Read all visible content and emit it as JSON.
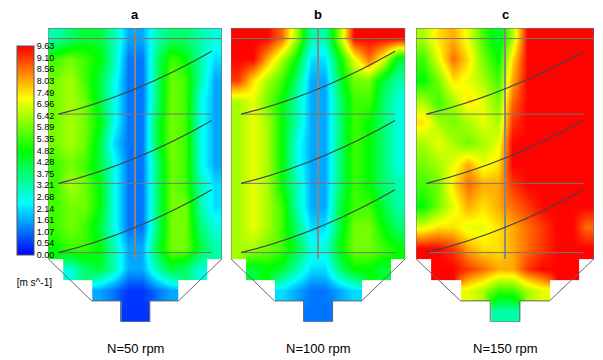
{
  "chart_data": [
    {
      "type": "heatmap",
      "title": "a",
      "x_label": "N=50 rpm",
      "tick_labels": false,
      "colorbar": {
        "title": "[m s^-1]",
        "range": [
          0,
          9.63
        ],
        "ticks": [
          {
            "value": 0,
            "label": "0.00"
          },
          0.54,
          1.07,
          1.61,
          2.14,
          2.68,
          3.21,
          3.75,
          4.28,
          4.82,
          5.35,
          5.89,
          6.42,
          6.96,
          7.49,
          8.03,
          8.56,
          {
            "value": 9.1,
            "label": "9.10"
          },
          9.63
        ]
      },
      "cells": [
        [
          3.2,
          3.8,
          4.3,
          4.3,
          3.2,
          1.6,
          1.6,
          3.2,
          3.8,
          3.8,
          3.2,
          2.7
        ],
        [
          5.4,
          5.9,
          5.4,
          4.8,
          3.2,
          1.1,
          1.1,
          3.8,
          5.4,
          4.8,
          3.2,
          2.1
        ],
        [
          5.9,
          6.4,
          5.4,
          4.3,
          2.7,
          1.1,
          1.1,
          3.8,
          5.9,
          5.4,
          3.2,
          1.6
        ],
        [
          5.9,
          6.4,
          5.9,
          4.3,
          2.7,
          1.1,
          1.1,
          3.8,
          5.9,
          5.4,
          2.7,
          1.6
        ],
        [
          5.9,
          6.4,
          5.9,
          4.8,
          2.7,
          1.1,
          1.1,
          4.3,
          5.9,
          5.4,
          2.7,
          1.6
        ],
        [
          5.9,
          6.4,
          5.9,
          4.3,
          2.1,
          1.1,
          1.1,
          4.3,
          5.9,
          5.4,
          2.7,
          1.6
        ],
        [
          5.4,
          5.9,
          5.4,
          4.3,
          2.7,
          1.1,
          1.1,
          3.8,
          5.9,
          5.4,
          2.7,
          1.6
        ],
        [
          5.4,
          6.4,
          5.9,
          4.8,
          2.7,
          1.1,
          1.1,
          3.8,
          5.9,
          5.4,
          3.2,
          2.1
        ],
        [
          5.4,
          5.9,
          5.9,
          4.8,
          2.7,
          1.1,
          1.1,
          3.8,
          5.9,
          5.9,
          3.2,
          2.1
        ],
        [
          5.4,
          5.9,
          5.4,
          4.3,
          2.7,
          1.1,
          1.1,
          3.8,
          5.9,
          5.9,
          3.8,
          2.7
        ],
        [
          4.8,
          5.4,
          5.4,
          4.8,
          3.2,
          1.6,
          1.6,
          4.3,
          5.9,
          5.9,
          4.3,
          3.2
        ],
        [
          null,
          2.7,
          3.8,
          4.3,
          3.2,
          1.6,
          1.6,
          3.2,
          4.3,
          3.8,
          2.7,
          null
        ],
        [
          null,
          null,
          null,
          1.6,
          1.1,
          0.5,
          0.5,
          1.1,
          1.6,
          null,
          null,
          null
        ],
        [
          null,
          null,
          null,
          null,
          null,
          0.5,
          0.5,
          null,
          null,
          null,
          null,
          null
        ]
      ]
    },
    {
      "type": "heatmap",
      "title": "b",
      "x_label": "N=100 rpm",
      "tick_labels": false,
      "cells": [
        [
          9.6,
          9.6,
          9.6,
          8.6,
          6.4,
          3.2,
          3.2,
          6.4,
          9.6,
          9.6,
          9.6,
          9.6
        ],
        [
          9.6,
          9.6,
          8.0,
          6.4,
          4.8,
          2.1,
          2.1,
          4.8,
          7.0,
          8.6,
          7.0,
          4.3
        ],
        [
          9.1,
          7.5,
          6.4,
          5.4,
          3.8,
          1.6,
          1.6,
          4.3,
          5.9,
          5.9,
          4.3,
          3.2
        ],
        [
          6.4,
          7.0,
          5.9,
          4.8,
          3.2,
          1.6,
          1.6,
          3.8,
          5.4,
          5.4,
          3.8,
          2.7
        ],
        [
          6.4,
          7.0,
          6.4,
          4.8,
          3.2,
          1.6,
          1.6,
          3.8,
          5.4,
          4.8,
          3.8,
          2.7
        ],
        [
          6.4,
          7.0,
          6.4,
          4.8,
          2.7,
          1.6,
          1.6,
          3.8,
          5.4,
          4.8,
          3.8,
          2.7
        ],
        [
          6.4,
          7.0,
          6.4,
          4.8,
          2.7,
          1.6,
          1.6,
          3.8,
          5.4,
          4.8,
          3.8,
          2.7
        ],
        [
          6.4,
          7.0,
          6.4,
          4.8,
          3.2,
          1.6,
          1.6,
          3.8,
          5.4,
          4.8,
          3.8,
          3.2
        ],
        [
          6.4,
          7.0,
          6.4,
          5.4,
          3.2,
          1.6,
          1.6,
          4.3,
          5.4,
          5.4,
          4.3,
          3.2
        ],
        [
          6.4,
          7.0,
          6.4,
          5.4,
          3.8,
          2.1,
          2.1,
          4.3,
          5.9,
          5.9,
          4.8,
          3.8
        ],
        [
          6.4,
          6.4,
          5.9,
          5.4,
          4.3,
          2.7,
          2.7,
          4.8,
          5.9,
          5.9,
          5.4,
          4.8
        ],
        [
          null,
          4.3,
          4.8,
          4.3,
          3.2,
          2.1,
          2.1,
          3.8,
          4.8,
          4.8,
          4.3,
          null
        ],
        [
          null,
          null,
          null,
          2.1,
          1.6,
          1.1,
          1.1,
          1.6,
          2.1,
          null,
          null,
          null
        ],
        [
          null,
          null,
          null,
          null,
          null,
          1.1,
          1.1,
          null,
          null,
          null,
          null,
          null
        ]
      ]
    },
    {
      "type": "heatmap",
      "title": "c",
      "x_label": "N=150 rpm",
      "tick_labels": false,
      "cells": [
        [
          6.4,
          7.5,
          8.0,
          7.0,
          5.4,
          4.3,
          6.4,
          9.6,
          9.6,
          9.6,
          9.6,
          9.6
        ],
        [
          5.4,
          7.0,
          8.6,
          7.5,
          5.9,
          4.8,
          7.5,
          9.6,
          9.6,
          9.6,
          9.6,
          9.6
        ],
        [
          4.8,
          5.9,
          7.5,
          7.0,
          6.4,
          5.4,
          8.0,
          9.6,
          9.6,
          9.6,
          9.6,
          9.6
        ],
        [
          6.4,
          5.4,
          6.4,
          7.5,
          7.0,
          5.9,
          8.6,
          9.6,
          9.6,
          9.6,
          9.6,
          9.6
        ],
        [
          7.5,
          6.4,
          5.9,
          6.4,
          7.0,
          6.4,
          9.1,
          9.6,
          9.6,
          9.6,
          9.6,
          9.6
        ],
        [
          6.4,
          7.0,
          6.4,
          5.9,
          6.4,
          7.0,
          9.6,
          9.6,
          9.6,
          9.6,
          9.6,
          9.6
        ],
        [
          5.9,
          6.4,
          7.0,
          8.0,
          7.0,
          7.5,
          9.6,
          9.6,
          9.6,
          9.6,
          9.6,
          9.6
        ],
        [
          5.4,
          5.9,
          7.5,
          8.6,
          8.0,
          8.0,
          9.1,
          9.6,
          9.6,
          9.6,
          9.6,
          9.6
        ],
        [
          4.8,
          5.9,
          7.0,
          8.0,
          7.5,
          8.0,
          8.6,
          9.1,
          9.6,
          9.6,
          9.6,
          9.6
        ],
        [
          7.0,
          7.5,
          7.5,
          7.0,
          7.0,
          7.5,
          8.0,
          8.6,
          9.1,
          9.6,
          9.6,
          8.6
        ],
        [
          9.6,
          9.6,
          9.1,
          8.0,
          7.5,
          7.5,
          8.0,
          8.6,
          9.1,
          9.6,
          9.6,
          9.6
        ],
        [
          null,
          9.6,
          9.6,
          9.1,
          8.6,
          8.0,
          8.0,
          9.1,
          9.6,
          9.6,
          9.6,
          null
        ],
        [
          null,
          null,
          null,
          7.0,
          6.4,
          5.4,
          5.4,
          6.4,
          7.0,
          null,
          null,
          null
        ],
        [
          null,
          null,
          null,
          null,
          null,
          3.2,
          3.2,
          null,
          null,
          null,
          null,
          null
        ]
      ]
    }
  ]
}
